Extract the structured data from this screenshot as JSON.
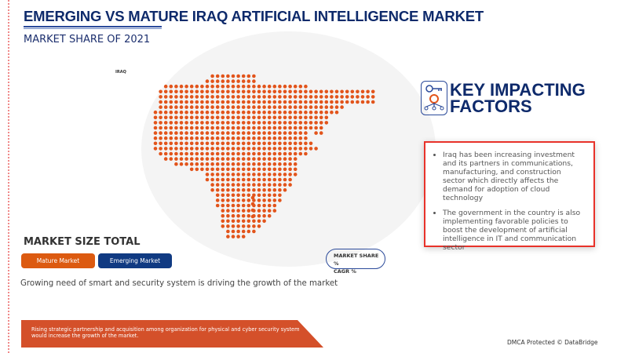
{
  "header": {
    "title": "EMERGING VS MATURE IRAQ ARTIFICIAL INTELLIGENCE MARKET",
    "subtitle": "MARKET SHARE OF 2021"
  },
  "map": {
    "label": "IRAQ",
    "dot_color": "#e2541b"
  },
  "key_factors": {
    "title_line1": "KEY IMPACTING",
    "title_line2": "FACTORS",
    "icon": "key-gear-network-icon",
    "items": [
      "Iraq has been increasing investment and its partners in communications, manufacturing, and construction sector which directly affects the demand for adoption of cloud technology",
      "The government in the country is also implementing favorable policies to boost the development of artificial intelligence in IT and communication sector"
    ]
  },
  "market_size": {
    "title": "MARKET SIZE TOTAL",
    "mature_label": "Mature Market",
    "emerging_label": "Emerging Market",
    "mature_color": "#dc5a10",
    "emerging_color": "#103a82"
  },
  "legend_pill": {
    "line1": "MARKET SHARE %",
    "line2": "CAGR %"
  },
  "driver_text": "Growing need of smart and security system is driving the growth of the market",
  "banner_text": "Rising strategic partnership and acquisition among organization for physical and cyber security system would increase the growth of the market.",
  "footer": "DMCA Protected © DataBridge"
}
